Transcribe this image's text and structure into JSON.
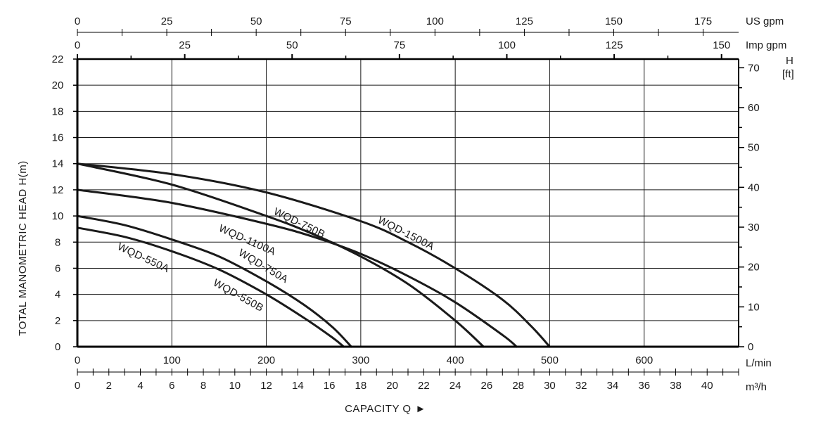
{
  "chart_data": {
    "type": "line",
    "title": "",
    "xlabel": "CAPACITY Q",
    "xlabel_arrow": "►",
    "ylabel": "TOTAL MANOMETRIC HEAD H(m)",
    "right_axis_label": [
      "H",
      "[ft]"
    ],
    "xlim": [
      0,
      700
    ],
    "ylim": [
      0,
      22
    ],
    "grid": true,
    "x_axis_unit": "L/min",
    "y_ticks": [
      0,
      2,
      4,
      6,
      8,
      10,
      12,
      14,
      16,
      18,
      20,
      22
    ],
    "x_ticks_lmin": [
      0,
      100,
      200,
      300,
      400,
      500,
      600
    ],
    "x_ticks_m3h": [
      0,
      2,
      4,
      6,
      8,
      10,
      12,
      14,
      16,
      18,
      20,
      22,
      24,
      26,
      28,
      30,
      32,
      34,
      36,
      38,
      40
    ],
    "x_ticks_us_gpm": [
      0,
      25,
      50,
      75,
      100,
      125,
      150,
      175
    ],
    "x_ticks_imp_gpm": [
      0,
      25,
      50,
      75,
      100,
      125,
      150
    ],
    "y_ticks_ft": [
      0,
      10,
      20,
      30,
      40,
      50,
      60,
      70
    ],
    "unit_labels": {
      "us_gpm": "US gpm",
      "imp_gpm": "Imp gpm",
      "lmin": "L/min",
      "m3h": "m³/h"
    },
    "series": [
      {
        "name": "WQD-1500A",
        "x": [
          0,
          100,
          200,
          300,
          350,
          400,
          450,
          480,
          500
        ],
        "y": [
          14,
          13.2,
          11.8,
          9.6,
          8.0,
          6.0,
          3.6,
          1.6,
          0
        ]
      },
      {
        "name": "WQD-750B",
        "x": [
          0,
          100,
          200,
          250,
          300,
          350,
          400,
          430
        ],
        "y": [
          14,
          12.4,
          10.0,
          8.6,
          6.9,
          4.8,
          2.0,
          0
        ]
      },
      {
        "name": "WQD-1100A",
        "x": [
          0,
          100,
          200,
          250,
          300,
          350,
          400,
          450,
          465
        ],
        "y": [
          12,
          11.0,
          9.4,
          8.4,
          7.1,
          5.4,
          3.4,
          0.9,
          0
        ]
      },
      {
        "name": "WQD-750A",
        "x": [
          0,
          50,
          100,
          150,
          200,
          240,
          270,
          290
        ],
        "y": [
          10,
          9.3,
          8.2,
          6.9,
          5.0,
          3.2,
          1.5,
          0
        ]
      },
      {
        "name": "WQD-550A",
        "x": [
          0,
          50,
          100,
          150,
          200,
          240,
          270,
          282
        ],
        "y": [
          9.1,
          8.4,
          7.3,
          5.9,
          4.0,
          2.2,
          0.7,
          0
        ]
      },
      {
        "name": "WQD-550B",
        "x": [],
        "y": []
      }
    ],
    "curve_labels": [
      {
        "text": "WQD-1500A",
        "series": "WQD-1500A"
      },
      {
        "text": "WQD-750B",
        "series": "WQD-750B"
      },
      {
        "text": "WQD-1100A",
        "series": "WQD-1100A"
      },
      {
        "text": "WQD-750A",
        "series": "WQD-750A"
      },
      {
        "text": "WQD-550A",
        "series": "WQD-550A"
      },
      {
        "text": "WQD-550B",
        "series": "WQD-550B"
      }
    ],
    "colors": {
      "curve": "#1a1a1a",
      "grid": "#1a1a1a",
      "frame": "#000000",
      "background": "#ffffff"
    }
  }
}
